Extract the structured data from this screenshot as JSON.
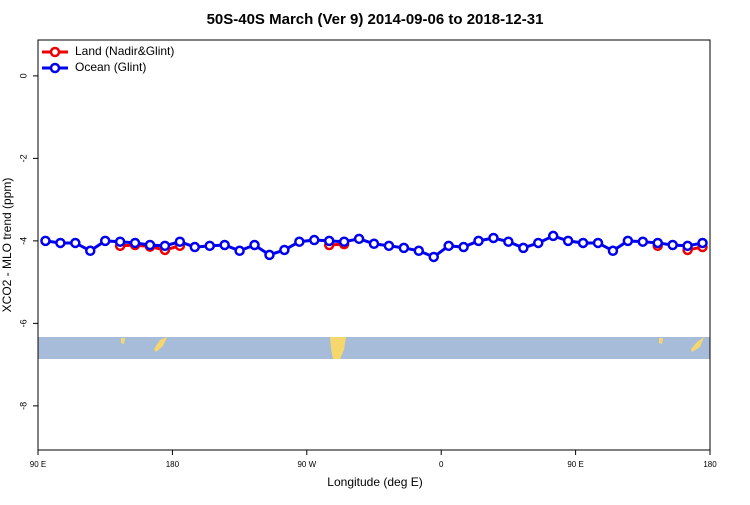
{
  "chart_data": {
    "type": "line",
    "title": "50S-40S March (Ver 9)   2014-09-06 to 2018-12-31",
    "x_label": "Longitude (deg E)",
    "y_label": "XCO2 - MLO trend (ppm)",
    "x": [
      95,
      105,
      115,
      125,
      135,
      145,
      155,
      165,
      175,
      185,
      195,
      205,
      215,
      225,
      235,
      245,
      255,
      265,
      275,
      285,
      295,
      305,
      315,
      325,
      335,
      345,
      355,
      365,
      375,
      385,
      395,
      405,
      415,
      425,
      435,
      445,
      455,
      465,
      475,
      485,
      495,
      505,
      515,
      525,
      535
    ],
    "series": [
      {
        "name": "Land (Nadir&Glint)",
        "color": "#ee0000",
        "values": [
          null,
          null,
          null,
          null,
          null,
          -4.12,
          -4.1,
          -4.14,
          -4.22,
          -4.12,
          null,
          null,
          null,
          null,
          null,
          null,
          null,
          null,
          null,
          -4.1,
          -4.08,
          null,
          null,
          null,
          null,
          null,
          null,
          null,
          null,
          null,
          null,
          null,
          null,
          null,
          null,
          null,
          null,
          null,
          null,
          null,
          null,
          -4.12,
          null,
          -4.22,
          -4.15
        ]
      },
      {
        "name": "Ocean (Glint)",
        "color": "#0000ee",
        "values": [
          -4.0,
          -4.05,
          -4.05,
          -4.24,
          -4.0,
          -4.02,
          -4.05,
          -4.1,
          -4.12,
          -4.02,
          -4.15,
          -4.12,
          -4.1,
          -4.24,
          -4.1,
          -4.34,
          -4.22,
          -4.02,
          -3.98,
          -4.0,
          -4.02,
          -3.95,
          -4.07,
          -4.12,
          -4.17,
          -4.24,
          -4.39,
          -4.12,
          -4.15,
          -4.0,
          -3.93,
          -4.02,
          -4.17,
          -4.05,
          -3.88,
          -4.0,
          -4.05,
          -4.05,
          -4.24,
          -4.0,
          -4.02,
          -4.05,
          -4.1,
          -4.12,
          -4.05
        ]
      }
    ],
    "xlim": [
      90,
      540
    ],
    "xticks": [
      {
        "value": 90,
        "label": "90 E"
      },
      {
        "value": 180,
        "label": "180"
      },
      {
        "value": 270,
        "label": "90 W"
      },
      {
        "value": 360,
        "label": "0"
      },
      {
        "value": 450,
        "label": "90 E"
      },
      {
        "value": 540,
        "label": "180"
      }
    ],
    "ylim": [
      -9.07,
      0.87
    ],
    "yticks": [
      0,
      -2,
      -4,
      -6,
      -8
    ],
    "legend": "top-left"
  }
}
